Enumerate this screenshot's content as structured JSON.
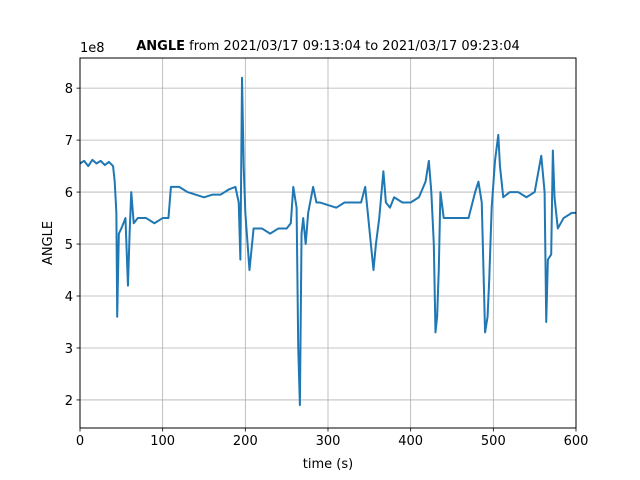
{
  "chart_data": {
    "type": "line",
    "title_bold": "ANGLE",
    "title_rest": " from 2021/03/17 09:13:04 to 2021/03/17 09:23:04",
    "offset_text": "1e8",
    "xlabel": "time (s)",
    "ylabel": "ANGLE",
    "color": "#1f77b4",
    "grid": true,
    "xlim": [
      0,
      600
    ],
    "xticks": [
      0,
      100,
      200,
      300,
      400,
      500,
      600
    ],
    "ylim": [
      1.46,
      8.58
    ],
    "yticks": [
      2,
      3,
      4,
      5,
      6,
      7,
      8
    ],
    "x": [
      0,
      5,
      10,
      15,
      20,
      25,
      30,
      35,
      40,
      42,
      44,
      45,
      47,
      50,
      55,
      58,
      60,
      62,
      65,
      70,
      80,
      90,
      100,
      107,
      110,
      120,
      130,
      140,
      150,
      160,
      170,
      180,
      188,
      192,
      194,
      196,
      198,
      200,
      205,
      210,
      220,
      230,
      240,
      250,
      255,
      258,
      262,
      264,
      266,
      268,
      270,
      273,
      276,
      282,
      286,
      290,
      300,
      310,
      320,
      330,
      340,
      345,
      350,
      355,
      358,
      362,
      367,
      370,
      375,
      380,
      390,
      400,
      410,
      418,
      422,
      425,
      428,
      430,
      432,
      434,
      436,
      440,
      450,
      460,
      470,
      478,
      482,
      486,
      490,
      493,
      495,
      498,
      502,
      506,
      508,
      512,
      520,
      530,
      540,
      550,
      558,
      562,
      564,
      566,
      570,
      572,
      574,
      578,
      585,
      595,
      600
    ],
    "values": [
      6.55,
      6.6,
      6.5,
      6.62,
      6.55,
      6.6,
      6.52,
      6.58,
      6.5,
      6.2,
      5.6,
      3.6,
      5.2,
      5.3,
      5.5,
      4.2,
      5.2,
      6.0,
      5.4,
      5.5,
      5.5,
      5.4,
      5.5,
      5.5,
      6.1,
      6.1,
      6.0,
      5.95,
      5.9,
      5.95,
      5.95,
      6.05,
      6.1,
      5.8,
      4.7,
      8.2,
      6.5,
      5.6,
      4.5,
      5.3,
      5.3,
      5.2,
      5.3,
      5.3,
      5.4,
      6.1,
      5.7,
      3.0,
      1.9,
      5.2,
      5.5,
      5.0,
      5.6,
      6.1,
      5.8,
      5.8,
      5.75,
      5.7,
      5.8,
      5.8,
      5.8,
      6.1,
      5.3,
      4.5,
      5.0,
      5.5,
      6.4,
      5.8,
      5.7,
      5.9,
      5.8,
      5.8,
      5.9,
      6.2,
      6.6,
      6.0,
      5.0,
      3.3,
      3.6,
      4.5,
      6.0,
      5.5,
      5.5,
      5.5,
      5.5,
      6.0,
      6.2,
      5.8,
      3.3,
      3.6,
      4.3,
      5.7,
      6.6,
      7.1,
      6.5,
      5.9,
      6.0,
      6.0,
      5.9,
      6.0,
      6.7,
      6.0,
      3.5,
      4.7,
      4.8,
      6.8,
      5.9,
      5.3,
      5.5,
      5.6,
      5.6
    ]
  }
}
